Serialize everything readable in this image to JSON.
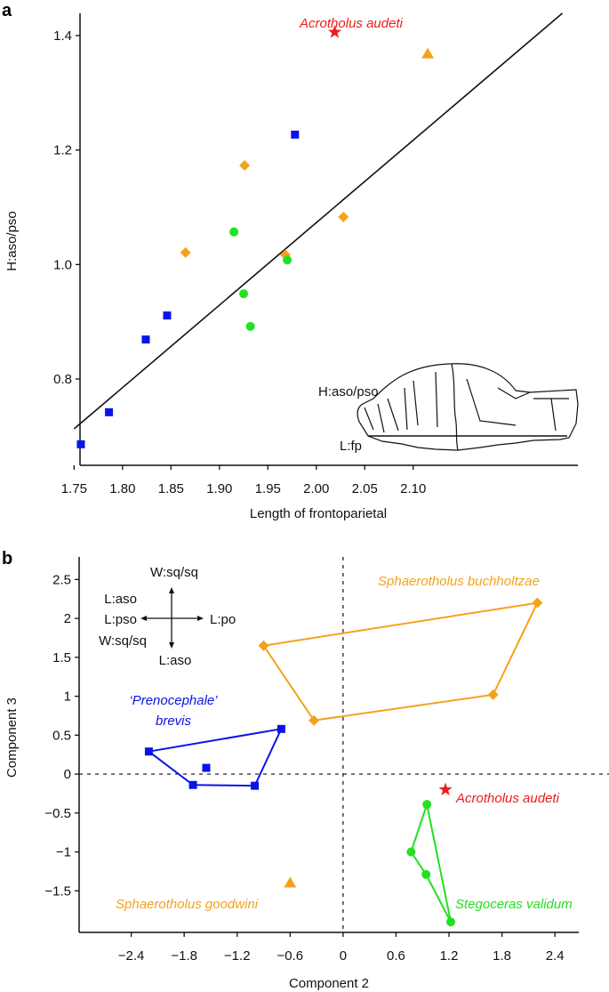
{
  "chart_data": [
    {
      "panel": "a",
      "type": "scatter",
      "xlabel": "Length of frontoparietal",
      "ylabel": "H:aso/pso",
      "xlim": [
        1.735,
        2.27
      ],
      "ylim": [
        0.713,
        1.48
      ],
      "xticks": [
        "1.75",
        "1.80",
        "1.85",
        "1.90",
        "1.95",
        "2.00",
        "2.05",
        "2.10"
      ],
      "xtick_values": [
        1.75,
        1.8,
        1.85,
        1.9,
        1.95,
        2.0,
        2.05,
        2.1
      ],
      "yticks": [
        "0.8",
        "1.0",
        "1.2",
        "1.4"
      ],
      "ytick_values": [
        0.8,
        1.0,
        1.2,
        1.4
      ],
      "fit_line": {
        "x": [
          1.75,
          2.254
        ],
        "y": [
          0.713,
          1.439
        ]
      },
      "series": [
        {
          "name": "Prenocephale brevis",
          "marker": "square",
          "color": "#0a14e6",
          "points": [
            [
              1.757,
              0.686
            ],
            [
              1.786,
              0.742
            ],
            [
              1.824,
              0.869
            ],
            [
              1.846,
              0.911
            ],
            [
              1.978,
              1.227
            ]
          ]
        },
        {
          "name": "Sphaerotholus buchholtzae",
          "marker": "diamond",
          "color": "#f5a21b",
          "points": [
            [
              1.865,
              1.021
            ],
            [
              1.926,
              1.173
            ],
            [
              1.968,
              1.017
            ],
            [
              2.028,
              1.083
            ]
          ]
        },
        {
          "name": "Stegoceras validum",
          "marker": "circle",
          "color": "#22e022",
          "points": [
            [
              1.915,
              1.057
            ],
            [
              1.925,
              0.949
            ],
            [
              1.932,
              0.892
            ],
            [
              1.97,
              1.008
            ]
          ]
        },
        {
          "name": "Acrotholus audeti",
          "marker": "star",
          "color": "#ee1c1c",
          "points": [
            [
              2.019,
              1.406
            ]
          ]
        },
        {
          "name": "Sphaerotholus goodwini",
          "marker": "triangle",
          "color": "#f5a21b",
          "points": [
            [
              2.115,
              1.368
            ]
          ]
        }
      ],
      "annotations": [
        {
          "text": "Acrotholus audeti",
          "color": "#ee1c1c"
        },
        {
          "text": "H:aso/pso"
        },
        {
          "text": "L:fp"
        }
      ]
    },
    {
      "panel": "b",
      "type": "scatter",
      "xlabel": "Component 2",
      "ylabel": "Component 3",
      "xlim": [
        -2.99,
        2.67
      ],
      "ylim": [
        -2.0,
        2.79
      ],
      "xticks": [
        "−2.4",
        "−1.8",
        "−1.2",
        "−0.6",
        "0",
        "0.6",
        "1.2",
        "1.8",
        "2.4"
      ],
      "xtick_values": [
        -2.4,
        -1.8,
        -1.2,
        -0.6,
        0,
        0.6,
        1.2,
        1.8,
        2.4
      ],
      "yticks": [
        "−1.5",
        "−1",
        "−0.5",
        "0",
        "0.5",
        "1",
        "1.5",
        "2",
        "2.5"
      ],
      "ytick_values": [
        -1.5,
        -1,
        -0.5,
        0,
        0.5,
        1,
        1.5,
        2,
        2.5
      ],
      "series": [
        {
          "name": "Sphaerotholus buchholtzae",
          "label": "Sphaerotholus buchholtzae",
          "marker": "diamond",
          "color": "#f5a21b",
          "hull": [
            [
              -0.9,
              1.65
            ],
            [
              2.2,
              2.2
            ],
            [
              1.7,
              1.02
            ],
            [
              -0.33,
              0.69
            ]
          ],
          "points": [
            [
              -0.9,
              1.65
            ],
            [
              2.2,
              2.2
            ],
            [
              1.7,
              1.02
            ],
            [
              -0.33,
              0.69
            ]
          ]
        },
        {
          "name": "Prenocephale brevis",
          "label": "‘Prenocephale’",
          "label2": "brevis",
          "marker": "square",
          "color": "#0a14e6",
          "hull": [
            [
              -2.2,
              0.29
            ],
            [
              -0.7,
              0.58
            ],
            [
              -1.0,
              -0.15
            ],
            [
              -1.7,
              -0.14
            ]
          ],
          "points": [
            [
              -2.2,
              0.29
            ],
            [
              -0.7,
              0.58
            ],
            [
              -1.0,
              -0.15
            ],
            [
              -1.7,
              -0.14
            ],
            [
              -1.55,
              0.08
            ]
          ]
        },
        {
          "name": "Stegoceras validum",
          "label": "Stegoceras validum",
          "marker": "circle",
          "color": "#22e022",
          "hull": [
            [
              0.95,
              -0.39
            ],
            [
              0.77,
              -1.0
            ],
            [
              0.94,
              -1.29
            ],
            [
              1.22,
              -1.9
            ]
          ],
          "points": [
            [
              0.95,
              -0.39
            ],
            [
              0.77,
              -1.0
            ],
            [
              0.94,
              -1.29
            ],
            [
              1.22,
              -1.9
            ]
          ]
        },
        {
          "name": "Acrotholus audeti",
          "label": "Acrotholus audeti",
          "marker": "star",
          "color": "#ee1c1c",
          "points": [
            [
              1.16,
              -0.2
            ]
          ]
        },
        {
          "name": "Sphaerotholus goodwini",
          "label": "Sphaerotholus goodwini",
          "marker": "triangle",
          "color": "#f5a21b",
          "points": [
            [
              -0.6,
              -1.4
            ]
          ]
        }
      ],
      "loading_diagram": {
        "up": "W:sq/sq",
        "left_top": "L:aso",
        "left": "L:pso",
        "left_bottom": "W:sq/sq",
        "right": "L:po",
        "down": "L:aso"
      }
    }
  ]
}
